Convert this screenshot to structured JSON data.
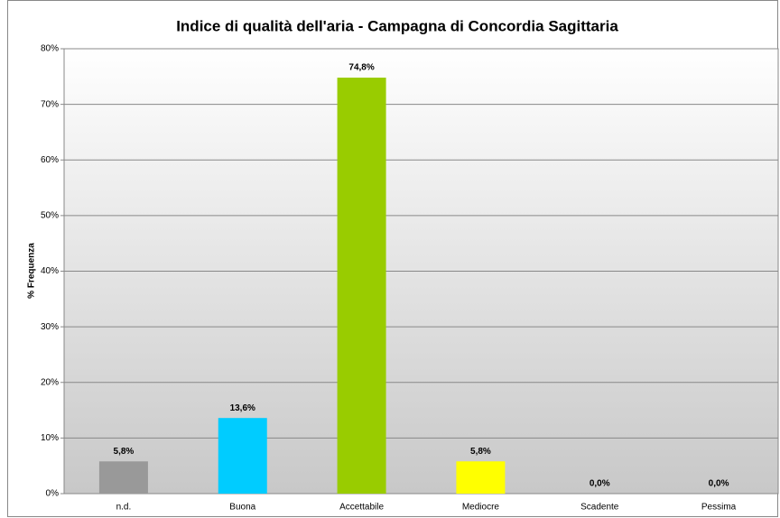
{
  "chart_data": {
    "type": "bar",
    "title": "Indice di qualità dell'aria - Campagna di Concordia Sagittaria",
    "y_label": "% Frequenza",
    "categories": [
      "n.d.",
      "Buona",
      "Accettabile",
      "Mediocre",
      "Scadente",
      "Pessima"
    ],
    "values": [
      5.8,
      13.6,
      74.8,
      5.8,
      0,
      0
    ],
    "value_labels": [
      "5,8%",
      "13,6%",
      "74,8%",
      "5,8%",
      "0,0%",
      "0,0%"
    ],
    "colors": [
      "#999999",
      "#00ccff",
      "#99cc00",
      "#ffff00",
      "#ff0000",
      "#993366"
    ],
    "ylim": [
      0,
      80
    ],
    "yticks": [
      {
        "value": 0,
        "label": "0%"
      },
      {
        "value": 10,
        "label": "10%"
      },
      {
        "value": 20,
        "label": "20%"
      },
      {
        "value": 30,
        "label": "30%"
      },
      {
        "value": 40,
        "label": "40%"
      },
      {
        "value": 50,
        "label": "50%"
      },
      {
        "value": 60,
        "label": "60%"
      },
      {
        "value": 70,
        "label": "70%"
      },
      {
        "value": 80,
        "label": "80%"
      }
    ],
    "grid": true
  }
}
